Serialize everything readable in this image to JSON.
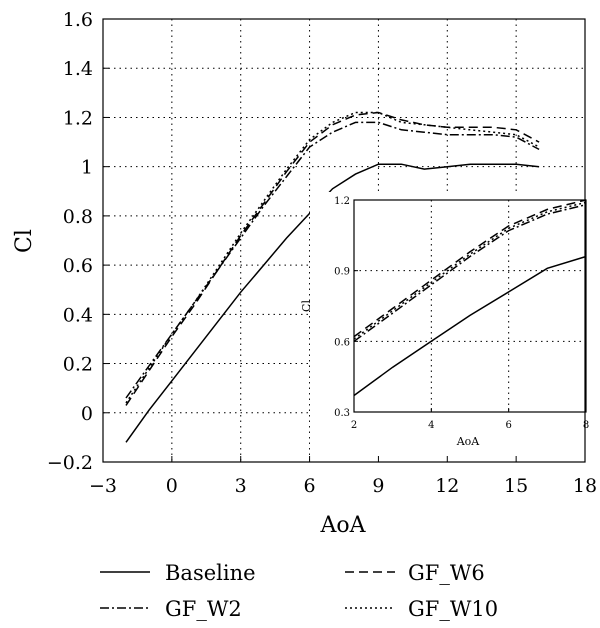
{
  "chart_data": [
    {
      "type": "line",
      "title": "",
      "xlabel": "AoA",
      "ylabel": "Cl",
      "xlim": [
        -3,
        18
      ],
      "ylim": [
        -0.2,
        1.6
      ],
      "xticks": [
        "−3",
        "0",
        "3",
        "6",
        "9",
        "12",
        "15",
        "18"
      ],
      "yticks": [
        "−0.2",
        "0",
        "0.2",
        "0.4",
        "0.6",
        "0.8",
        "1",
        "1.2",
        "1.4",
        "1.6"
      ],
      "grid": "dotted",
      "legend_position": "bottom",
      "series": [
        {
          "name": "Baseline",
          "style": "solid",
          "x": [
            -2,
            -1,
            0,
            1,
            2,
            3,
            4,
            5,
            6,
            7,
            8,
            9,
            10,
            11,
            12,
            13,
            14,
            15,
            16
          ],
          "y": [
            -0.12,
            0.01,
            0.13,
            0.25,
            0.37,
            0.49,
            0.6,
            0.71,
            0.81,
            0.91,
            0.97,
            1.01,
            1.01,
            0.99,
            1.0,
            1.01,
            1.01,
            1.01,
            1.0
          ]
        },
        {
          "name": "GF_W2",
          "style": "dashdot",
          "x": [
            -2,
            -1,
            0,
            1,
            2,
            3,
            4,
            5,
            6,
            7,
            8,
            9,
            10,
            11,
            12,
            13,
            14,
            15,
            16
          ],
          "y": [
            0.06,
            0.19,
            0.32,
            0.45,
            0.58,
            0.71,
            0.84,
            0.96,
            1.08,
            1.14,
            1.18,
            1.18,
            1.15,
            1.14,
            1.13,
            1.13,
            1.13,
            1.12,
            1.07
          ]
        },
        {
          "name": "GF_W6",
          "style": "dashed",
          "x": [
            -2,
            -1,
            0,
            1,
            2,
            3,
            4,
            5,
            6,
            7,
            8,
            9,
            10,
            11,
            12,
            13,
            14,
            15,
            16
          ],
          "y": [
            0.03,
            0.17,
            0.31,
            0.44,
            0.58,
            0.72,
            0.85,
            0.98,
            1.1,
            1.17,
            1.21,
            1.22,
            1.19,
            1.17,
            1.16,
            1.16,
            1.16,
            1.15,
            1.1
          ]
        },
        {
          "name": "GF_W10",
          "style": "dotted",
          "x": [
            -2,
            -1,
            0,
            1,
            2,
            3,
            4,
            5,
            6,
            7,
            8,
            9,
            10,
            11,
            12,
            13,
            14,
            15,
            16
          ],
          "y": [
            0.04,
            0.18,
            0.32,
            0.45,
            0.59,
            0.73,
            0.86,
            0.99,
            1.11,
            1.18,
            1.22,
            1.22,
            1.18,
            1.17,
            1.16,
            1.15,
            1.14,
            1.13,
            1.08
          ]
        }
      ]
    },
    {
      "type": "line",
      "title": "",
      "xlabel": "AoA",
      "ylabel": "Cl",
      "xlim": [
        2,
        8
      ],
      "ylim": [
        0.3,
        1.2
      ],
      "xticks": [
        "2",
        "4",
        "6",
        "8"
      ],
      "yticks": [
        "0.3",
        "0.6",
        "0.9",
        "1.2"
      ],
      "grid": "dotted",
      "series": [
        {
          "name": "Baseline",
          "style": "solid",
          "x": [
            2,
            3,
            4,
            5,
            6,
            7,
            8
          ],
          "y": [
            0.37,
            0.49,
            0.6,
            0.71,
            0.81,
            0.91,
            0.96
          ]
        },
        {
          "name": "GF_W2",
          "style": "dashdot",
          "x": [
            2,
            3,
            4,
            5,
            6,
            7,
            8
          ],
          "y": [
            0.6,
            0.72,
            0.84,
            0.96,
            1.07,
            1.14,
            1.18
          ]
        },
        {
          "name": "GF_W6",
          "style": "dashed",
          "x": [
            2,
            3,
            4,
            5,
            6,
            7,
            8
          ],
          "y": [
            0.62,
            0.74,
            0.86,
            0.98,
            1.09,
            1.16,
            1.2
          ]
        },
        {
          "name": "GF_W10",
          "style": "dotted",
          "x": [
            2,
            3,
            4,
            5,
            6,
            7,
            8
          ],
          "y": [
            0.61,
            0.73,
            0.85,
            0.97,
            1.08,
            1.15,
            1.19
          ]
        }
      ]
    }
  ]
}
